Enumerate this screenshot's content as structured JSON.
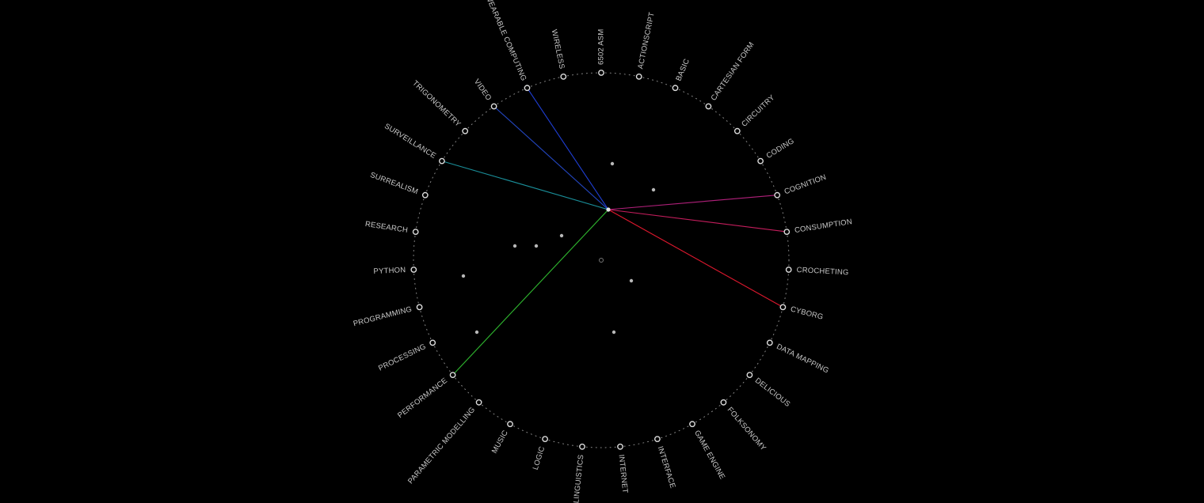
{
  "topics": [
    "6502 ASM",
    "ACTIONSCRIPT",
    "BASIC",
    "CARTESIAN FORM",
    "CIRCUITRY",
    "CODING",
    "COGNITION",
    "CONSUMPTION",
    "CROCHETING",
    "CYBORG",
    "DATA MAPPING",
    "DELICIOUS",
    "FOLKSONOMY",
    "GAME ENGINE",
    "INTERFACE",
    "INTERNET",
    "LINGUISTICS",
    "LOGIC",
    "MUSIC",
    "PARAMETRIC MODELLING",
    "PERFORMANCE",
    "PROCESSING",
    "PROGRAMMING",
    "PYTHON",
    "RESEARCH",
    "SURREALISM",
    "SURVEILLANCE",
    "TRIGONOMETRY",
    "VIDEO",
    "WEARABLE COMPUTING",
    "WIRELESS"
  ],
  "connections": [
    {
      "to": "WEARABLE COMPUTING",
      "color": "#1f3fd6"
    },
    {
      "to": "VIDEO",
      "color": "#2346c0"
    },
    {
      "to": "SURVEILLANCE",
      "color": "#1a8f9a"
    },
    {
      "to": "PERFORMANCE",
      "color": "#2fb82f"
    },
    {
      "to": "COGNITION",
      "color": "#b0207a"
    },
    {
      "to": "CONSUMPTION",
      "color": "#c41d5c"
    },
    {
      "to": "CYBORG",
      "color": "#e0182e"
    }
  ],
  "colors": {
    "background": "#000000",
    "node": "#dddddd",
    "label": "#c8c8c8"
  }
}
